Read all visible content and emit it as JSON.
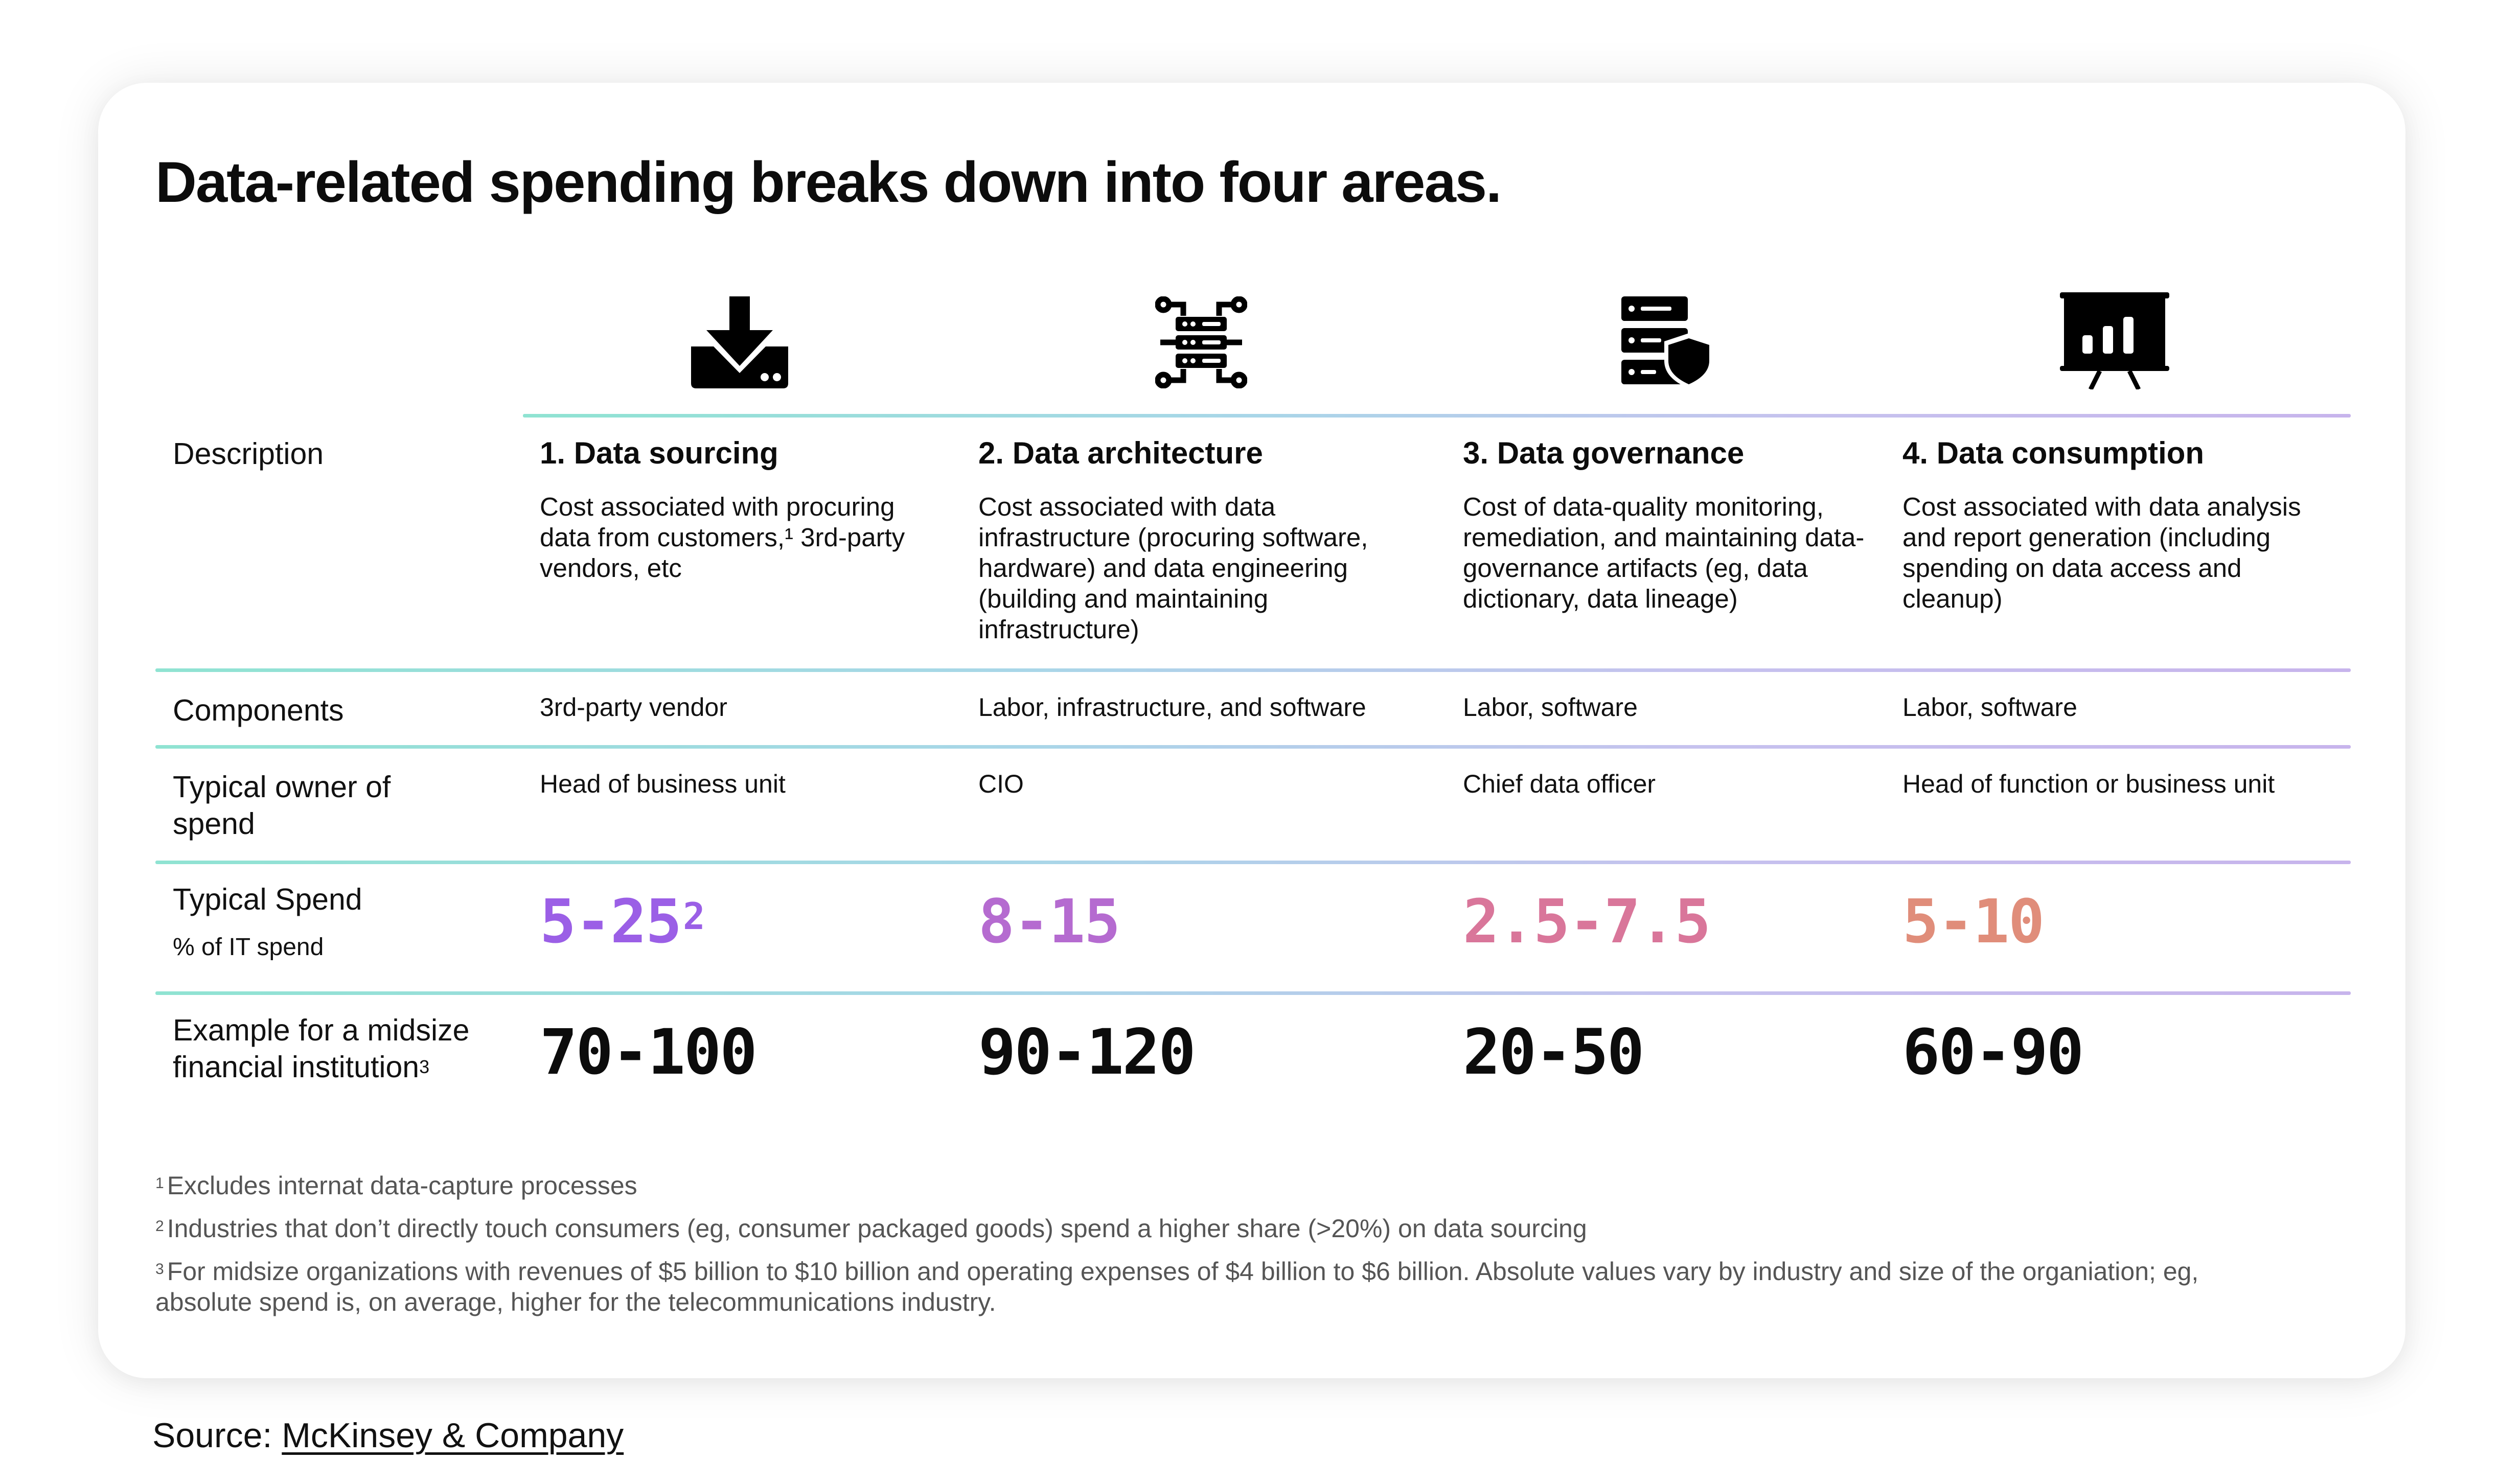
{
  "title": "Data-related spending breaks down into four areas.",
  "row_labels": {
    "description": "Description",
    "components": "Components",
    "owner": "Typical owner of spend",
    "spend": "Typical Spend",
    "spend_sub": "% of IT spend",
    "example": "Example for a midsize financial institution",
    "example_footnote": "3"
  },
  "columns": [
    {
      "icon": "download-tray-icon",
      "title": "1. Data sourcing",
      "description": "Cost associated with procuring data from customers,¹ 3rd-party vendors, etc",
      "components": "3rd-party vendor",
      "owner": "Head of business unit",
      "spend": "5-25",
      "spend_footnote": "2",
      "spend_color": "#9b5fe6",
      "example": "70-100"
    },
    {
      "icon": "server-network-icon",
      "title": "2. Data architecture",
      "description": "Cost associated with data infrastructure (procuring software, hardware) and data engineering (building and maintaining infrastructure)",
      "components": "Labor, infrastructure, and software",
      "owner": "CIO",
      "spend": "8-15",
      "spend_footnote": "",
      "spend_color": "#b56bd0",
      "example": "90-120"
    },
    {
      "icon": "server-shield-icon",
      "title": "3.  Data governance",
      "description": "Cost of data-quality monitoring, remediation, and maintaining data-governance artifacts (eg, data dictionary, data lineage)",
      "components": "Labor, software",
      "owner": "Chief data officer",
      "spend": "2.5-7.5",
      "spend_footnote": "",
      "spend_color": "#d9769a",
      "example": "20-50"
    },
    {
      "icon": "presentation-chart-icon",
      "title": "4. Data consumption",
      "description": "Cost associated with data analysis and report generation (including spending on data access and cleanup)",
      "components": "Labor, software",
      "owner": "Head of function or business unit",
      "spend": "5-10",
      "spend_footnote": "",
      "spend_color": "#e08d7a",
      "example": "60-90"
    }
  ],
  "footnotes": [
    {
      "mark": "1",
      "text": "Excludes internat data-capture processes"
    },
    {
      "mark": "2",
      "text": "Industries that don’t directly touch consumers (eg, consumer packaged goods) spend a higher share (>20%) on data sourcing"
    },
    {
      "mark": "3",
      "text": "For midsize organizations with revenues of $5 billion to $10 billion and operating expenses of $4 billion to $6 billion. Absolute values vary by industry and size of the organiation; eg, absolute spend is, on average, higher for the telecommunications industry."
    }
  ],
  "source": {
    "label": "Source:",
    "name": "McKinsey & Company"
  }
}
